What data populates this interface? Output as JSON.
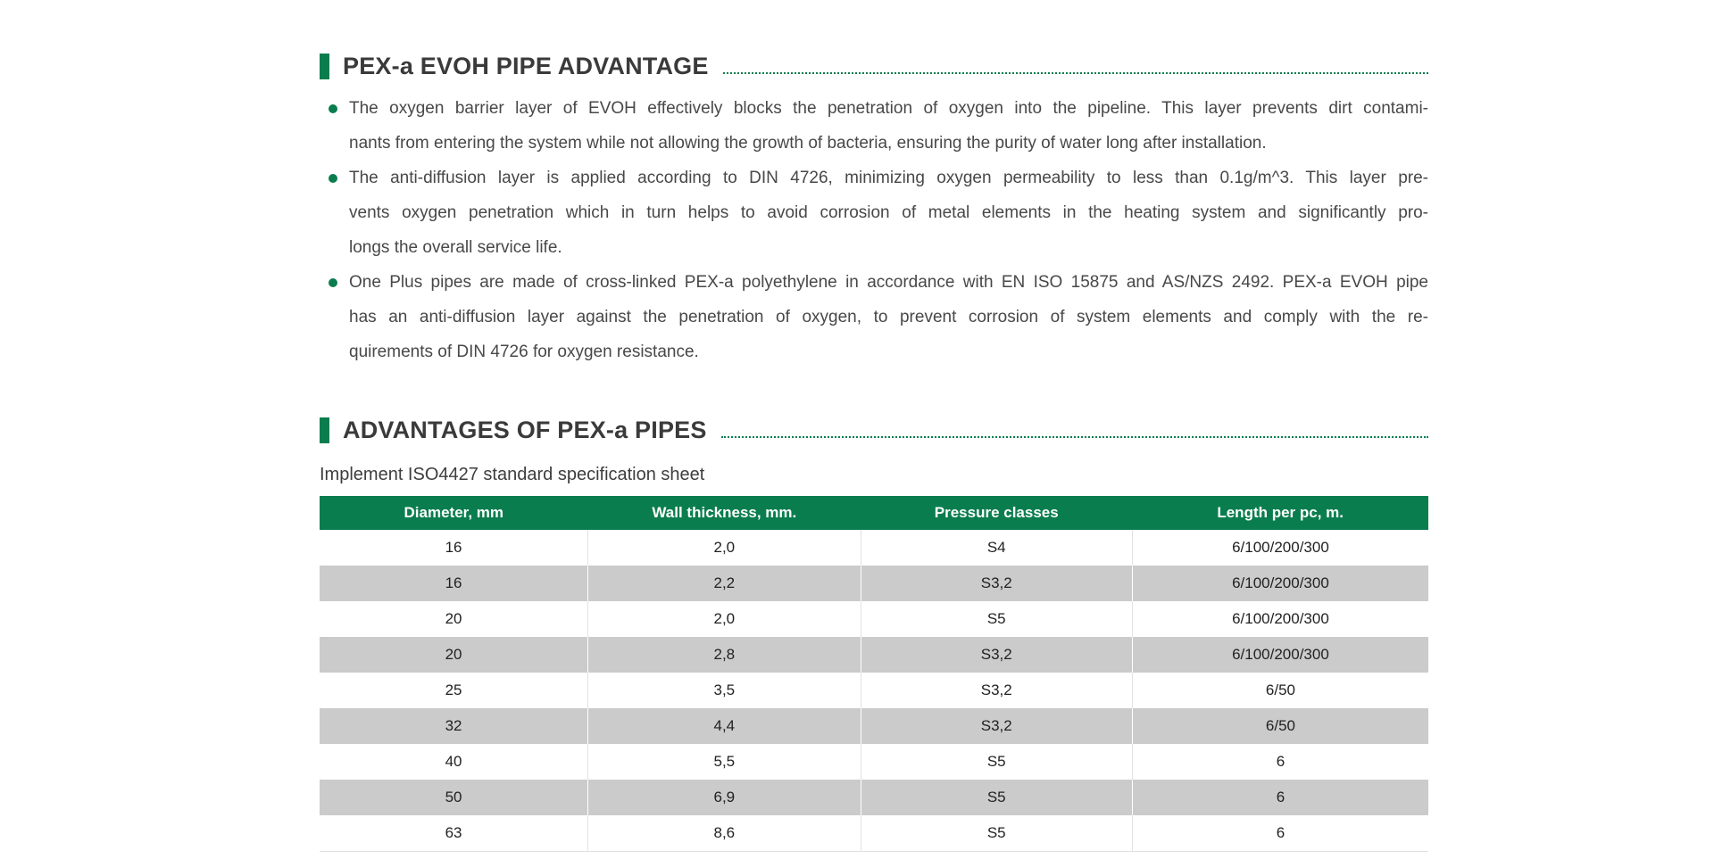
{
  "colors": {
    "brand_green": "#0a7d4e",
    "row_alt_gray": "#cbcbcb",
    "heading_text": "#3a3a3a",
    "body_text": "#484848"
  },
  "section1": {
    "title": "PEX-a EVOH PIPE ADVANTAGE",
    "bullets": [
      {
        "lines": [
          "The oxygen barrier layer of EVOH effectively blocks the penetration of oxygen into the pipeline. This layer prevents dirt contami-",
          "nants from entering the system while not allowing the growth of bacteria, ensuring the purity of water long after installation."
        ]
      },
      {
        "lines": [
          "The anti-diffusion layer is applied according to DIN 4726, minimizing oxygen permeability to less than 0.1g/m^3. This layer pre-",
          "vents oxygen penetration which in turn helps to avoid corrosion of metal elements in the heating system and significantly pro-",
          "longs the overall service life."
        ]
      },
      {
        "lines": [
          "One Plus pipes are made of cross-linked PEX-a polyethylene in accordance with EN ISO 15875 and AS/NZS 2492. PEX-a EVOH pipe",
          "has an anti-diffusion layer against the penetration of oxygen, to prevent corrosion of system elements and comply with the re-",
          "quirements of DIN 4726 for oxygen resistance."
        ]
      }
    ]
  },
  "section2": {
    "title": "ADVANTAGES OF PEX-a PIPES",
    "subtitle": "Implement ISO4427 standard specification sheet",
    "table": {
      "headers": [
        "Diameter, mm",
        "Wall thickness, mm.",
        "Pressure classes",
        "Length per pc, m."
      ],
      "col_widths": [
        "24.2%",
        "24.6%",
        "24.5%",
        "26.7%"
      ],
      "rows": [
        [
          "16",
          "2,0",
          "S4",
          "6/100/200/300"
        ],
        [
          "16",
          "2,2",
          "S3,2",
          "6/100/200/300"
        ],
        [
          "20",
          "2,0",
          "S5",
          "6/100/200/300"
        ],
        [
          "20",
          "2,8",
          "S3,2",
          "6/100/200/300"
        ],
        [
          "25",
          "3,5",
          "S3,2",
          "6/50"
        ],
        [
          "32",
          "4,4",
          "S3,2",
          "6/50"
        ],
        [
          "40",
          "5,5",
          "S5",
          "6"
        ],
        [
          "50",
          "6,9",
          "S5",
          "6"
        ],
        [
          "63",
          "8,6",
          "S5",
          "6"
        ]
      ]
    }
  }
}
